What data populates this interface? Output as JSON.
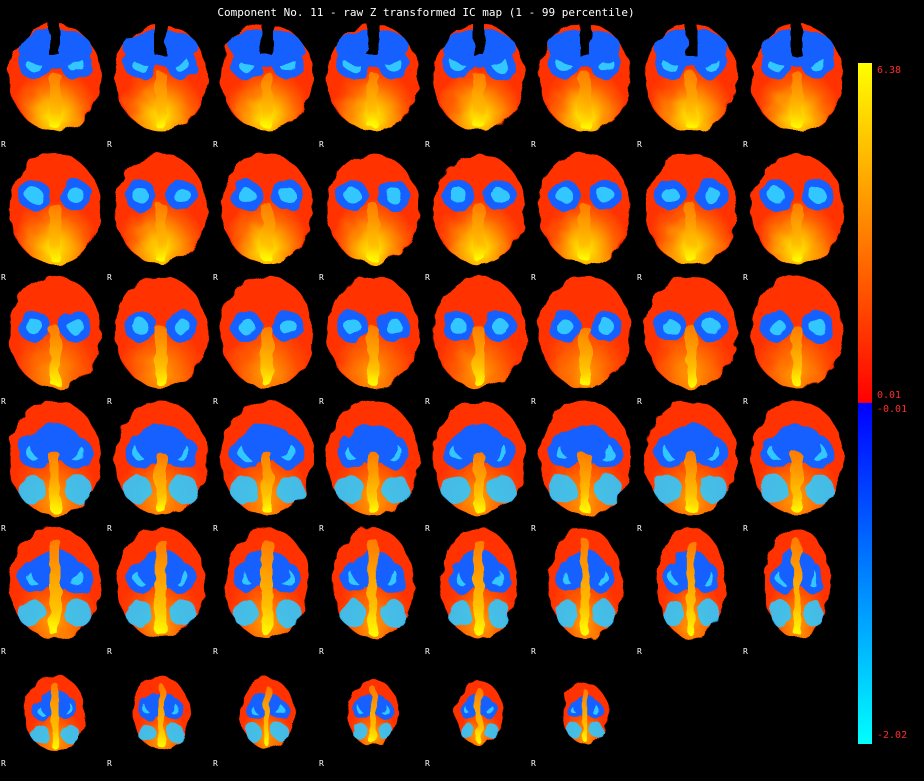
{
  "title": "Component No. 11 - raw Z transformed IC map (1 - 99 percentile)",
  "orientation_label": "R",
  "colorbar": {
    "max_label": "6.38",
    "pos_min_label": "0.01",
    "neg_min_label": "-0.01",
    "neg_max_label": "-2.02",
    "colors": {
      "pos_low": "#ff0000",
      "pos_mid": "#ff8000",
      "pos_high": "#ffff00",
      "neg_low": "#0000ff",
      "neg_mid": "#0080ff",
      "neg_high": "#00ffff"
    }
  },
  "grid": {
    "columns": 8,
    "rows": 6,
    "slice_count": 46
  }
}
